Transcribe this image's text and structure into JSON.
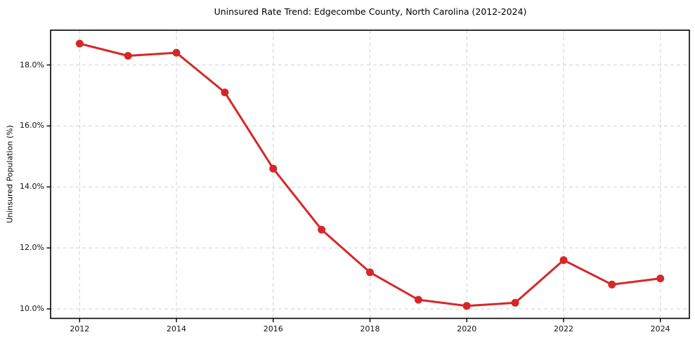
{
  "figure": {
    "title": "Uninsured Rate Trend: Edgecombe County, North Carolina (2012-2024)"
  },
  "chart_data": {
    "type": "line",
    "title": "Uninsured Rate Trend: Edgecombe County, North Carolina (2012-2024)",
    "x": [
      2012,
      2013,
      2014,
      2015,
      2016,
      2017,
      2018,
      2019,
      2020,
      2021,
      2022,
      2023,
      2024
    ],
    "values": [
      18.7,
      18.3,
      18.4,
      17.1,
      14.6,
      12.6,
      11.2,
      10.3,
      10.1,
      10.2,
      11.6,
      10.8,
      11.0
    ],
    "xlabel": "",
    "ylabel": "Uninsured Population (%)",
    "xlim": [
      2011.4,
      2024.6
    ],
    "ylim": [
      9.69,
      19.14
    ],
    "xticks": [
      2012,
      2014,
      2016,
      2018,
      2020,
      2022,
      2024
    ],
    "xtick_labels": [
      "2012",
      "2014",
      "2016",
      "2018",
      "2020",
      "2022",
      "2024"
    ],
    "yticks": [
      10,
      12,
      14,
      16,
      18
    ],
    "ytick_labels": [
      "10.0%",
      "12.0%",
      "14.0%",
      "16.0%",
      "18.0%"
    ],
    "line_color": "#d62728",
    "marker": "circle",
    "marker_radius": 5.5,
    "line_width": 3,
    "grid": true,
    "grid_color": "#d2d2d2",
    "grid_style": "dashed",
    "axis_color": "#000000",
    "background": "#ffffff",
    "legend": "none"
  }
}
